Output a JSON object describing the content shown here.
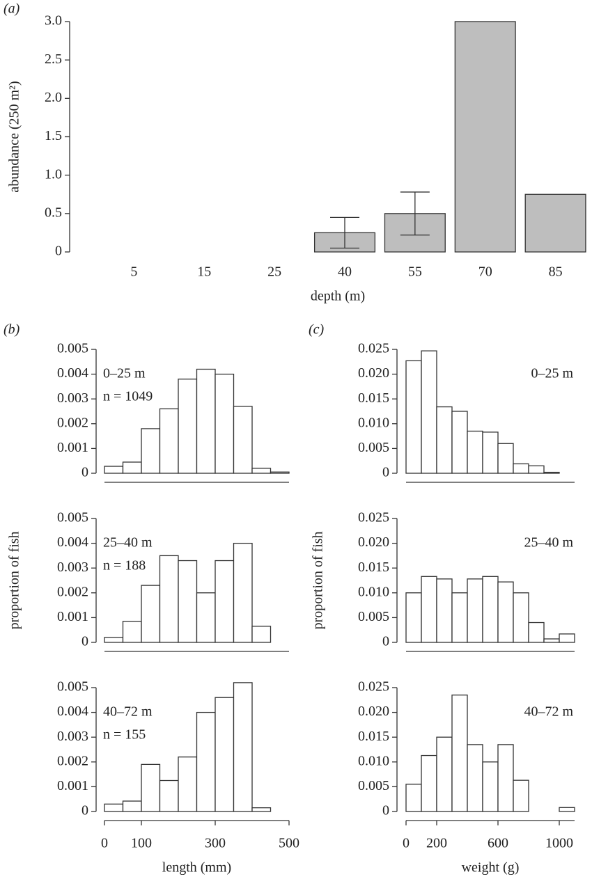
{
  "chart_data": [
    {
      "type": "bar",
      "panel_label": "(a)",
      "categories": [
        "5",
        "15",
        "25",
        "40",
        "55",
        "70",
        "85"
      ],
      "values": [
        0,
        0,
        0,
        0.25,
        0.5,
        3.0,
        0.75
      ],
      "errors": [
        null,
        null,
        null,
        0.2,
        0.28,
        null,
        null
      ],
      "color": "#bebebe",
      "ylim": [
        0,
        3
      ],
      "yticks": [
        0,
        0.5,
        {
          "value": 1,
          "label": "1.0"
        },
        1.5,
        {
          "value": 2,
          "label": "2.0"
        },
        2.5,
        {
          "value": 3,
          "label": "3.0"
        }
      ],
      "xlabel": "depth (m)",
      "ylabel": "abundance (250 m²)"
    },
    {
      "type": "histogram",
      "panel_label": "(b)",
      "annotations": [
        "0–25 m",
        "n = 1049"
      ],
      "bins": [
        0,
        50,
        100,
        150,
        200,
        250,
        300,
        350,
        400,
        450,
        500
      ],
      "values": [
        0.00028,
        0.00045,
        0.0018,
        0.0026,
        0.0038,
        0.0042,
        0.004,
        0.0027,
        0.0002,
        5e-05
      ],
      "color": "#ffffff",
      "xlim": [
        0,
        500
      ],
      "ylim": [
        0,
        0.005
      ],
      "yticks": [
        0,
        0.001,
        0.002,
        0.003,
        0.004,
        0.005
      ]
    },
    {
      "type": "histogram",
      "annotations": [
        "25–40 m",
        "n = 188"
      ],
      "bins": [
        0,
        50,
        100,
        150,
        200,
        250,
        300,
        350,
        400,
        450
      ],
      "values": [
        0.0002,
        0.00085,
        0.0023,
        0.0035,
        0.0033,
        0.002,
        0.0033,
        0.004,
        0.00065
      ],
      "color": "#ffffff",
      "xlim": [
        0,
        500
      ],
      "ylim": [
        0,
        0.005
      ],
      "yticks": [
        0,
        0.001,
        0.002,
        0.003,
        0.004,
        0.005
      ],
      "ylabel": "proportion of fish"
    },
    {
      "type": "histogram",
      "annotations": [
        "40–72 m",
        "n = 155"
      ],
      "bins": [
        0,
        50,
        100,
        150,
        200,
        250,
        300,
        350,
        400,
        450
      ],
      "values": [
        0.0003,
        0.00042,
        0.0019,
        0.00125,
        0.0022,
        0.004,
        0.0046,
        0.0052,
        0.00015
      ],
      "color": "#ffffff",
      "xlim": [
        0,
        500
      ],
      "ylim": [
        0,
        0.005
      ],
      "yticks": [
        0,
        0.001,
        0.002,
        0.003,
        0.004,
        0.005
      ],
      "xticks": [
        0,
        100,
        300,
        500
      ],
      "xlabel": "length (mm)"
    },
    {
      "type": "histogram",
      "panel_label": "(c)",
      "annotations": [
        "0–25 m"
      ],
      "bins": [
        0,
        100,
        200,
        300,
        400,
        500,
        600,
        700,
        800,
        900,
        1000
      ],
      "values": [
        0.0227,
        0.0247,
        0.0134,
        0.0125,
        0.0085,
        0.0083,
        0.006,
        0.0019,
        0.0015,
        0.0002
      ],
      "color": "#ffffff",
      "xlim": [
        0,
        1100
      ],
      "ylim": [
        0,
        0.025
      ],
      "yticks": [
        0,
        0.005,
        {
          "value": 0.01,
          "label": "0.010"
        },
        0.015,
        {
          "value": 0.02,
          "label": "0.020"
        },
        0.025
      ]
    },
    {
      "type": "histogram",
      "annotations": [
        "25–40 m"
      ],
      "bins": [
        0,
        100,
        200,
        300,
        400,
        500,
        600,
        700,
        800,
        900,
        1000,
        1100
      ],
      "values": [
        0.01,
        0.0133,
        0.0128,
        0.01,
        0.0128,
        0.0133,
        0.0122,
        0.01,
        0.004,
        0.0007,
        0.0017
      ],
      "color": "#ffffff",
      "xlim": [
        0,
        1100
      ],
      "ylim": [
        0,
        0.025
      ],
      "yticks": [
        0,
        0.005,
        {
          "value": 0.01,
          "label": "0.010"
        },
        0.015,
        {
          "value": 0.02,
          "label": "0.020"
        },
        0.025
      ],
      "ylabel": "proportion of fish"
    },
    {
      "type": "histogram",
      "annotations": [
        "40–72 m"
      ],
      "bins": [
        0,
        100,
        200,
        300,
        400,
        500,
        600,
        700,
        800,
        900,
        1000,
        1100
      ],
      "values": [
        0.0055,
        0.0113,
        0.015,
        0.0235,
        0.0135,
        0.01,
        0.0135,
        0.0063,
        0,
        0,
        0.0008
      ],
      "color": "#ffffff",
      "xlim": [
        0,
        1100
      ],
      "ylim": [
        0,
        0.025
      ],
      "yticks": [
        0,
        0.005,
        {
          "value": 0.01,
          "label": "0.010"
        },
        0.015,
        {
          "value": 0.02,
          "label": "0.020"
        },
        0.025
      ],
      "xticks": [
        0,
        200,
        600,
        1000
      ],
      "xlabel": "weight (g)"
    }
  ]
}
